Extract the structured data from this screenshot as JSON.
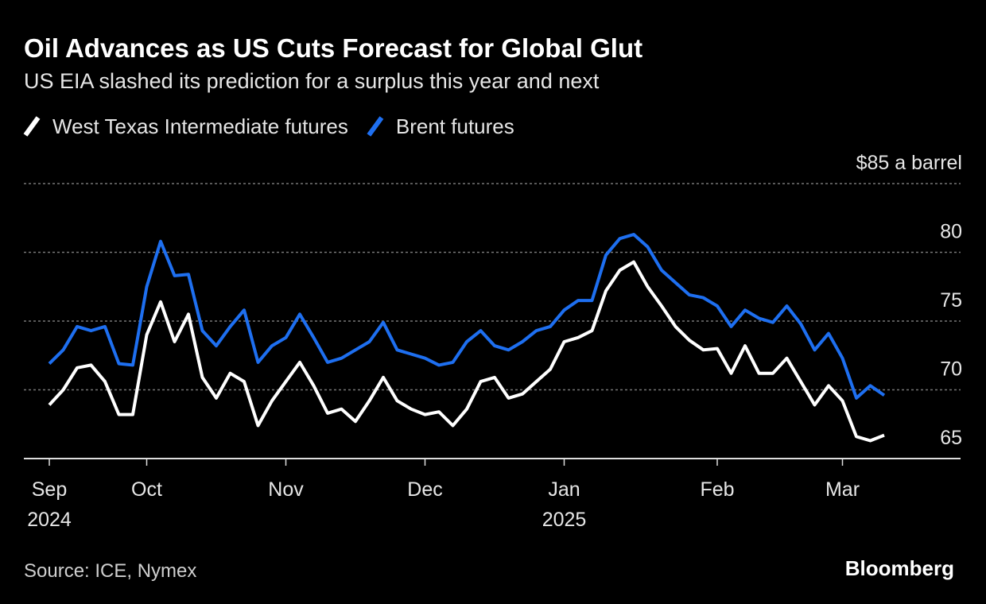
{
  "chart_data": {
    "type": "line",
    "title": "Oil Advances as US Cuts Forecast for Global Glut",
    "subtitle": "US EIA slashed its prediction for a surplus this year and next",
    "source": "Source: ICE, Nymex",
    "brand": "Bloomberg",
    "categories": [
      "Sep 2024",
      null,
      null,
      null,
      null,
      null,
      null,
      "Oct",
      null,
      null,
      null,
      null,
      null,
      null,
      null,
      null,
      null,
      "Nov",
      null,
      null,
      null,
      null,
      null,
      null,
      null,
      null,
      null,
      "Dec",
      null,
      null,
      null,
      null,
      null,
      null,
      null,
      null,
      null,
      "Jan 2025",
      null,
      null,
      null,
      null,
      null,
      null,
      null,
      null,
      null,
      null,
      "Feb",
      null,
      null,
      null,
      null,
      null,
      null,
      null,
      null,
      "Mar",
      null,
      null,
      null
    ],
    "series": [
      {
        "name": "West Texas Intermediate futures",
        "color": "#ffffff",
        "values": [
          68.9,
          70.0,
          71.6,
          71.8,
          70.6,
          68.2,
          68.2,
          74.0,
          76.4,
          73.5,
          75.5,
          70.9,
          69.4,
          71.2,
          70.6,
          67.4,
          69.2,
          70.6,
          72.0,
          70.3,
          68.3,
          68.6,
          67.7,
          69.2,
          70.9,
          69.2,
          68.6,
          68.2,
          68.4,
          67.4,
          68.6,
          70.6,
          70.9,
          69.4,
          69.7,
          70.6,
          71.5,
          73.5,
          73.8,
          74.3,
          77.2,
          78.7,
          79.3,
          77.5,
          76.1,
          74.6,
          73.6,
          72.9,
          73.0,
          71.2,
          73.2,
          71.2,
          71.2,
          72.3,
          70.6,
          68.9,
          70.3,
          69.2,
          66.6,
          66.3,
          66.7
        ]
      },
      {
        "name": "Brent futures",
        "color": "#1e6ff0",
        "values": [
          71.9,
          72.9,
          74.6,
          74.3,
          74.6,
          71.9,
          71.8,
          77.5,
          80.8,
          78.3,
          78.4,
          74.3,
          73.2,
          74.6,
          75.8,
          72.0,
          73.2,
          73.8,
          75.5,
          73.8,
          72.0,
          72.3,
          72.9,
          73.5,
          74.9,
          72.9,
          72.6,
          72.3,
          71.8,
          72.0,
          73.5,
          74.3,
          73.2,
          72.9,
          73.5,
          74.3,
          74.6,
          75.8,
          76.5,
          76.5,
          79.8,
          81.0,
          81.3,
          80.4,
          78.7,
          77.8,
          76.9,
          76.7,
          76.1,
          74.6,
          75.8,
          75.2,
          74.9,
          76.1,
          74.8,
          72.9,
          74.1,
          72.3,
          69.4,
          70.3,
          69.6
        ]
      }
    ],
    "ylim": [
      65,
      85
    ],
    "yticks": [
      65,
      70,
      75,
      80,
      {
        "value": 85,
        "label": "$85 a barrel"
      }
    ],
    "grid": true,
    "legend": "top-left"
  }
}
